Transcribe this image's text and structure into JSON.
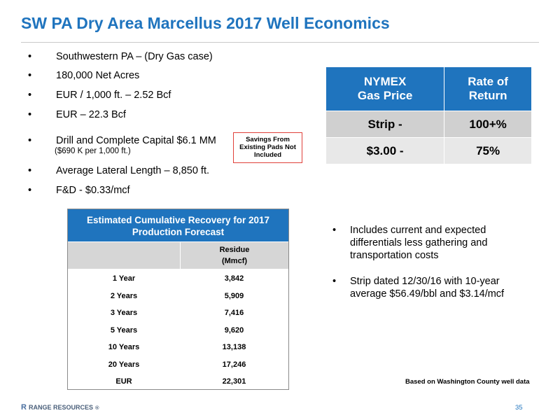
{
  "title": "SW PA Dry Area Marcellus 2017 Well Economics",
  "bullets": [
    "Southwestern PA – (Dry Gas case)",
    "180,000 Net Acres",
    "EUR / 1,000 ft. – 2.52 Bcf",
    "EUR – 22.3 Bcf",
    "Drill and Complete Capital $6.1 MM",
    "Average Lateral Length – 8,850 ft.",
    "F&D - $0.33/mcf"
  ],
  "bullet_char": "•",
  "capital_note": "($690 K per 1,000 ft.)",
  "savings_box": [
    "Savings From",
    "Existing Pads Not",
    "Included"
  ],
  "rate_table": {
    "headers": [
      [
        "NYMEX",
        "Gas Price"
      ],
      [
        "Rate of",
        "Return"
      ]
    ],
    "rows": [
      [
        "Strip -",
        "100+%"
      ],
      [
        "$3.00 -",
        "75%"
      ]
    ]
  },
  "recovery_table": {
    "title": [
      "Estimated Cumulative Recovery for 2017",
      "Production Forecast"
    ],
    "col_header": [
      "Residue",
      "(Mmcf)"
    ],
    "rows": [
      [
        "1 Year",
        "3,842"
      ],
      [
        "2 Years",
        "5,909"
      ],
      [
        "3 Years",
        "7,416"
      ],
      [
        "5 Years",
        "9,620"
      ],
      [
        "10 Years",
        "13,138"
      ],
      [
        "20 Years",
        "17,246"
      ],
      [
        "EUR",
        "22,301"
      ]
    ]
  },
  "right_bullets": [
    [
      "Includes current and expected",
      "differentials less gathering and",
      "transportation costs"
    ],
    [
      "Strip dated 12/30/16 with 10-year",
      "average $56.49/bbl and $3.14/mcf"
    ]
  ],
  "based_note": "Based on Washington County well data",
  "footer": {
    "logo": "RANGE RESOURCES",
    "logo_mark": "R",
    "trademark": "®",
    "page_number": "35"
  },
  "colors": {
    "accent": "#1f74be",
    "box_border": "#e0403a",
    "row1": "#d0d0d0",
    "row2": "#e8e8e8"
  }
}
